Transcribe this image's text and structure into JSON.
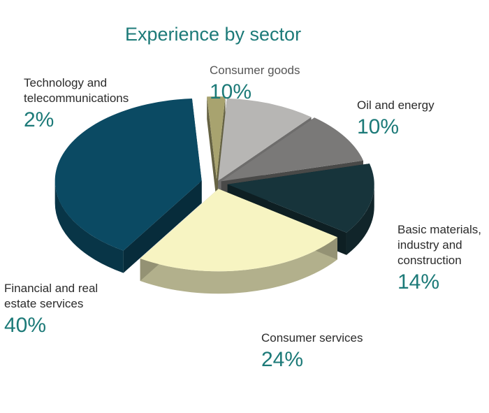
{
  "chart_data": {
    "type": "pie",
    "title": "Experience by sector",
    "slices": [
      {
        "label": "Consumer goods",
        "value": 10,
        "value_label": "10%",
        "color": "#b7b6b4"
      },
      {
        "label": "Oil and energy",
        "value": 10,
        "value_label": "10%",
        "color": "#7a7978"
      },
      {
        "label": "Basic materials, industry and construction",
        "value": 14,
        "value_label": "14%",
        "color": "#17343b"
      },
      {
        "label": "Consumer services",
        "value": 24,
        "value_label": "24%",
        "color": "#f7f4c2"
      },
      {
        "label": "Financial and real estate services",
        "value": 40,
        "value_label": "40%",
        "color": "#0b4a63"
      },
      {
        "label": "Technology and telecommunications",
        "value": 2,
        "value_label": "2%",
        "color": "#a8a36f"
      }
    ]
  }
}
